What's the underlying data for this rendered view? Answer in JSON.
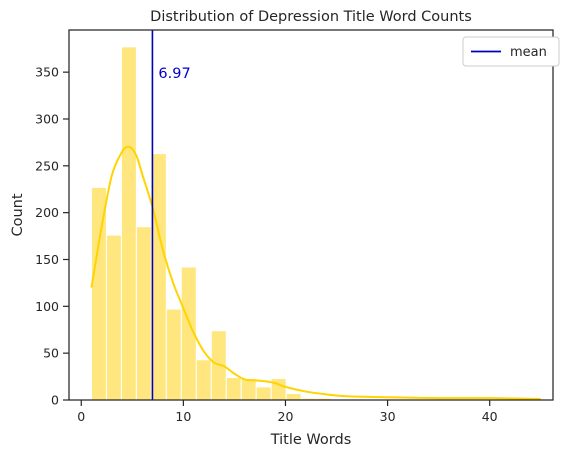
{
  "chart_data": {
    "type": "bar",
    "title": "Distribution of Depression Title Word Counts",
    "xlabel": "Title Words",
    "ylabel": "Count",
    "xlim": [
      -1.2,
      46.2
    ],
    "ylim": [
      0,
      395
    ],
    "xticks": [
      0,
      10,
      20,
      30,
      40
    ],
    "yticks": [
      0,
      50,
      100,
      150,
      200,
      250,
      300,
      350
    ],
    "bin_width": 1.466,
    "bin_start": 1,
    "bins": [
      {
        "x0": 1.0,
        "x1": 2.466,
        "count": 227
      },
      {
        "x0": 2.466,
        "x1": 3.933,
        "count": 176
      },
      {
        "x0": 3.933,
        "x1": 5.4,
        "count": 377
      },
      {
        "x0": 5.4,
        "x1": 6.866,
        "count": 185
      },
      {
        "x0": 6.866,
        "x1": 8.333,
        "count": 263
      },
      {
        "x0": 8.333,
        "x1": 9.8,
        "count": 97
      },
      {
        "x0": 9.8,
        "x1": 11.266,
        "count": 142
      },
      {
        "x0": 11.266,
        "x1": 12.733,
        "count": 43
      },
      {
        "x0": 12.733,
        "x1": 14.2,
        "count": 74
      },
      {
        "x0": 14.2,
        "x1": 15.666,
        "count": 24
      },
      {
        "x0": 15.666,
        "x1": 17.133,
        "count": 23
      },
      {
        "x0": 17.133,
        "x1": 18.6,
        "count": 14
      },
      {
        "x0": 18.6,
        "x1": 20.066,
        "count": 23
      },
      {
        "x0": 20.066,
        "x1": 21.533,
        "count": 7
      },
      {
        "x0": 21.533,
        "x1": 23.0,
        "count": 2
      },
      {
        "x0": 23.0,
        "x1": 24.466,
        "count": 2
      },
      {
        "x0": 24.466,
        "x1": 25.933,
        "count": 1
      },
      {
        "x0": 25.933,
        "x1": 27.4,
        "count": 1
      },
      {
        "x0": 27.4,
        "x1": 28.866,
        "count": 1
      },
      {
        "x0": 28.866,
        "x1": 30.333,
        "count": 1
      },
      {
        "x0": 30.333,
        "x1": 31.8,
        "count": 1
      },
      {
        "x0": 31.8,
        "x1": 33.266,
        "count": 1
      },
      {
        "x0": 33.266,
        "x1": 34.733,
        "count": 1
      },
      {
        "x0": 34.733,
        "x1": 36.2,
        "count": 1
      },
      {
        "x0": 36.2,
        "x1": 37.666,
        "count": 1
      },
      {
        "x0": 37.666,
        "x1": 39.133,
        "count": 1
      },
      {
        "x0": 39.133,
        "x1": 40.6,
        "count": 1
      },
      {
        "x0": 43.533,
        "x1": 45.0,
        "count": 1
      }
    ],
    "kde": {
      "x": [
        1,
        2,
        3,
        4,
        4.5,
        5,
        5.5,
        6,
        7,
        8,
        9,
        10,
        11,
        12,
        13,
        14,
        15,
        16,
        17,
        18,
        19,
        20,
        22,
        24,
        26,
        30,
        35,
        40,
        45
      ],
      "y": [
        120,
        185,
        240,
        265,
        270,
        268,
        258,
        240,
        205,
        160,
        125,
        98,
        72,
        52,
        40,
        36,
        28,
        22,
        21,
        20,
        18,
        14,
        9,
        6,
        4,
        3,
        2,
        2,
        1
      ]
    },
    "mean": 6.97,
    "mean_label": "6.97",
    "legend": {
      "entries": [
        "mean"
      ],
      "placement": "top-right"
    },
    "grid": false,
    "colors": {
      "bar_fill": "#ffe67f",
      "bar_edge": "#ffffff",
      "kde_line": "#ffd400",
      "mean_line": "#0000b5",
      "mean_text": "#0000cc",
      "axis": "#262626"
    }
  }
}
